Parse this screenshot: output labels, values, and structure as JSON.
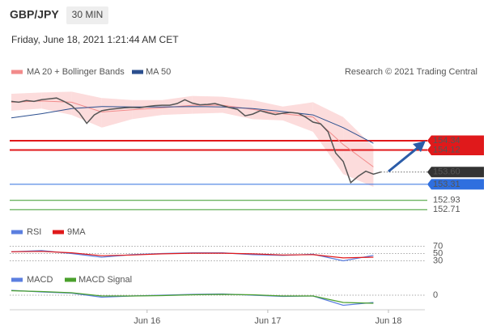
{
  "chart_data": {
    "type": "line",
    "title": "GBP/JPY",
    "timeframe": "30 MIN",
    "subtitle": "Friday, June 18, 2021 1:21:44 AM CET",
    "source": "Research © 2021 Trading Central",
    "xlim": [
      0,
      55
    ],
    "xticks": [
      {
        "value": 18,
        "label": "Jun 16"
      },
      {
        "value": 34,
        "label": "Jun 17"
      },
      {
        "value": 50,
        "label": "Jun 18"
      }
    ],
    "ylim": [
      152.6,
      155.66
    ],
    "price": {
      "color": "#555555",
      "x": [
        0,
        1,
        2,
        3,
        4,
        5,
        6,
        7,
        8,
        9,
        10,
        11,
        12,
        13,
        14,
        15,
        16,
        17,
        18,
        19,
        20,
        21,
        22,
        23,
        24,
        25,
        26,
        27,
        28,
        29,
        30,
        31,
        32,
        33,
        34,
        35,
        36,
        37,
        38,
        39,
        40,
        41,
        42,
        43,
        44,
        45,
        46,
        47,
        48,
        49
      ],
      "values": [
        155.27,
        155.25,
        155.29,
        155.27,
        155.31,
        155.33,
        155.35,
        155.27,
        155.17,
        155.0,
        154.75,
        154.95,
        155.05,
        155.08,
        155.1,
        155.12,
        155.13,
        155.12,
        155.15,
        155.17,
        155.18,
        155.18,
        155.22,
        155.31,
        155.23,
        155.19,
        155.2,
        155.22,
        155.17,
        155.12,
        155.08,
        154.93,
        154.97,
        155.05,
        155.0,
        154.96,
        154.99,
        155.01,
        154.99,
        154.9,
        154.78,
        154.74,
        154.55,
        154.05,
        153.85,
        153.35,
        153.5,
        153.62,
        153.55,
        153.6
      ]
    },
    "overlays": {
      "x": [
        0,
        4,
        8,
        12,
        16,
        20,
        24,
        28,
        32,
        36,
        40,
        44,
        48
      ],
      "series": [
        {
          "name": "MA 20 + Bollinger Bands",
          "color": "#f28b8b",
          "band_color": "#fbd3d3",
          "values": [
            155.25,
            155.28,
            155.25,
            155.02,
            155.07,
            155.12,
            155.18,
            155.18,
            155.08,
            154.98,
            154.9,
            154.25,
            153.72
          ],
          "upper": [
            155.45,
            155.48,
            155.5,
            155.35,
            155.3,
            155.3,
            155.4,
            155.38,
            155.3,
            155.15,
            155.25,
            154.9,
            154.2
          ],
          "lower": [
            155.05,
            155.1,
            154.95,
            154.65,
            154.85,
            154.95,
            154.98,
            155.0,
            154.85,
            154.82,
            154.55,
            153.55,
            153.25
          ]
        },
        {
          "name": "MA 50",
          "color": "#2b4f8f",
          "values": [
            154.88,
            154.98,
            155.1,
            155.15,
            155.14,
            155.14,
            155.15,
            155.14,
            155.1,
            155.03,
            154.95,
            154.65,
            154.28
          ]
        }
      ]
    },
    "levels": [
      {
        "value": 154.34,
        "color": "#e0191b",
        "style": "box"
      },
      {
        "value": 154.12,
        "color": "#e0191b",
        "style": "box"
      },
      {
        "value": 153.6,
        "label": "153.60",
        "color": "#333333",
        "style": "current"
      },
      {
        "value": 153.31,
        "color": "#2f6fdf",
        "style": "box"
      },
      {
        "value": 152.93,
        "color": "#3a9a2a",
        "style": "text"
      },
      {
        "value": 152.71,
        "color": "#3a9a2a",
        "style": "text"
      }
    ],
    "panels": [
      {
        "x": [
          0,
          4,
          8,
          12,
          16,
          20,
          24,
          28,
          32,
          36,
          40,
          44,
          48
        ],
        "ylim": [
          20,
          80
        ],
        "yticks": [
          70,
          50,
          30
        ],
        "series": [
          {
            "name": "RSI",
            "color": "#5b7fe0",
            "values": [
              55,
              58,
              50,
              40,
              47,
              50,
              52,
              52,
              47,
              45,
              48,
              30,
              45
            ]
          },
          {
            "name": "9MA",
            "color": "#e0191b",
            "values": [
              55,
              56,
              52,
              44,
              46,
              49,
              51,
              51,
              49,
              46,
              47,
              38,
              40
            ]
          }
        ]
      },
      {
        "x": [
          0,
          4,
          8,
          12,
          16,
          20,
          24,
          28,
          32,
          36,
          40,
          44,
          48
        ],
        "ylim": [
          -0.4,
          0.2
        ],
        "yticks": [
          0
        ],
        "series": [
          {
            "name": "MACD",
            "color": "#5b7fe0",
            "values": [
              0.12,
              0.08,
              0.05,
              -0.05,
              -0.02,
              0.0,
              0.02,
              0.03,
              0.0,
              -0.03,
              -0.02,
              -0.25,
              -0.18
            ]
          },
          {
            "name": "MACD Signal",
            "color": "#4aa02c",
            "values": [
              0.11,
              0.09,
              0.06,
              -0.02,
              -0.02,
              -0.01,
              0.01,
              0.02,
              0.01,
              -0.02,
              -0.02,
              -0.18,
              -0.2
            ]
          }
        ]
      }
    ]
  }
}
